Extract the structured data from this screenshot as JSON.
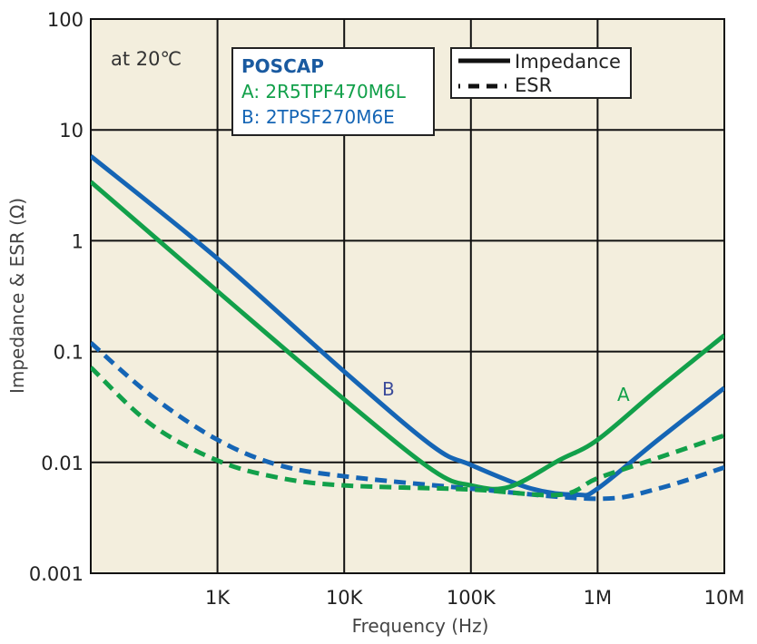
{
  "chart_data": {
    "type": "line",
    "xlabel": "Frequency (Hz)",
    "ylabel": "Impedance & ESR (Ω)",
    "x_scale": "log",
    "y_scale": "log",
    "xlim": [
      100,
      10000000
    ],
    "ylim": [
      0.001,
      100
    ],
    "grid": true,
    "x_ticks": [
      {
        "v": 1000,
        "label": "1K"
      },
      {
        "v": 10000,
        "label": "10K"
      },
      {
        "v": 100000,
        "label": "100K"
      },
      {
        "v": 1000000,
        "label": "1M"
      },
      {
        "v": 10000000,
        "label": "10M"
      }
    ],
    "y_ticks": [
      {
        "v": 100,
        "label": "100"
      },
      {
        "v": 10,
        "label": "10"
      },
      {
        "v": 1,
        "label": "1"
      },
      {
        "v": 0.1,
        "label": "0.1"
      },
      {
        "v": 0.01,
        "label": "0.01"
      },
      {
        "v": 0.001,
        "label": "0.001"
      }
    ],
    "annotation": "at 20℃",
    "box": {
      "title": "POSCAP",
      "a": "A: 2R5TPF470M6L",
      "b": "B: 2TPSF270M6E"
    },
    "legend": {
      "impedance": "Impedance",
      "esr": "ESR",
      "placement": "top-right"
    },
    "curve_labels": {
      "a": "A",
      "b": "B"
    },
    "colors": {
      "a": "#12a04a",
      "b": "#1565b5",
      "background": "#f3eedd",
      "title": "#1a5aa0"
    },
    "series": [
      {
        "id": "b-impedance",
        "style": "solid",
        "color": "#1565b5",
        "x": [
          100,
          1000,
          10000,
          50000,
          100000,
          300000,
          700000,
          1000000,
          3000000,
          10000000
        ],
        "y": [
          5.8,
          0.69,
          0.066,
          0.014,
          0.0095,
          0.0058,
          0.0051,
          0.0058,
          0.016,
          0.047
        ]
      },
      {
        "id": "a-impedance",
        "style": "solid",
        "color": "#12a04a",
        "x": [
          100,
          1000,
          10000,
          50000,
          100000,
          200000,
          500000,
          1000000,
          3000000,
          10000000
        ],
        "y": [
          3.4,
          0.35,
          0.037,
          0.0085,
          0.0062,
          0.006,
          0.0105,
          0.016,
          0.046,
          0.14
        ]
      },
      {
        "id": "b-esr",
        "style": "dashed",
        "color": "#1565b5",
        "x": [
          100,
          300,
          1000,
          3000,
          10000,
          100000,
          1000000,
          3000000,
          10000000
        ],
        "y": [
          0.12,
          0.04,
          0.016,
          0.0095,
          0.0075,
          0.0058,
          0.0047,
          0.0058,
          0.009
        ]
      },
      {
        "id": "a-esr",
        "style": "dashed",
        "color": "#12a04a",
        "x": [
          100,
          300,
          1000,
          3000,
          10000,
          100000,
          500000,
          1000000,
          3000000,
          10000000
        ],
        "y": [
          0.072,
          0.022,
          0.0104,
          0.0073,
          0.0062,
          0.0057,
          0.0051,
          0.0072,
          0.011,
          0.0175
        ]
      }
    ]
  }
}
